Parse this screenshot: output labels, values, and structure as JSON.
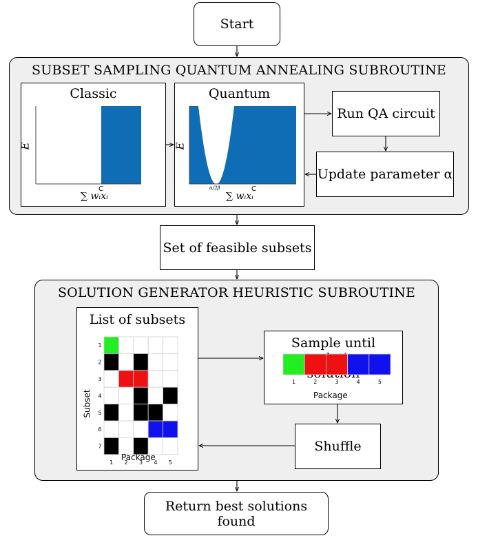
{
  "start": "Start",
  "top_section": {
    "title": "SUBSET SAMPLING QUANTUM ANNEALING SUBROUTINE",
    "classic": {
      "title": "Classic",
      "ylabel": "E",
      "xlabel": "∑ wᵢxᵢ",
      "xmark": "C"
    },
    "quantum": {
      "title": "Quantum",
      "ylabel": "E",
      "xlabel": "∑ wᵢxᵢ",
      "xmark": "C",
      "min_label": "α/2β"
    },
    "run_qa": "Run QA circuit",
    "update_param": "Update parameter α"
  },
  "feasible": "Set of feasible subsets",
  "bottom_section": {
    "title": "SOLUTION GENERATOR HEURISTIC SUBROUTINE",
    "list_title": "List of subsets",
    "sample_title_line1": "Sample until",
    "sample_title_line2": "completing a solution",
    "shuffle": "Shuffle",
    "package_label": "Package",
    "subset_label": "Subset"
  },
  "return_best": "Return best solutions found",
  "colors": {
    "green": "#22ee22",
    "red": "#ee1111",
    "blue": "#1111ee",
    "plot_blue": "#0f6db5",
    "black": "#000000",
    "panel": "#efefef"
  },
  "chart_data": [
    {
      "type": "heatmap",
      "title": "List of subsets",
      "xlabel": "Package",
      "ylabel": "Subset",
      "x_ticks": [
        "1",
        "2",
        "3",
        "4",
        "5"
      ],
      "y_ticks": [
        "1",
        "2",
        "3",
        "4",
        "5",
        "6",
        "7"
      ],
      "grid": [
        [
          "green",
          "white",
          "white",
          "white",
          "white"
        ],
        [
          "black",
          "white",
          "black",
          "white",
          "white"
        ],
        [
          "white",
          "red",
          "red",
          "white",
          "white"
        ],
        [
          "white",
          "white",
          "black",
          "white",
          "black"
        ],
        [
          "black",
          "white",
          "black",
          "black",
          "white"
        ],
        [
          "white",
          "white",
          "white",
          "blue",
          "blue"
        ],
        [
          "black",
          "white",
          "black",
          "white",
          "white"
        ]
      ]
    },
    {
      "type": "heatmap",
      "title": "Sample until completing a solution",
      "xlabel": "Package",
      "x_ticks": [
        "1",
        "2",
        "3",
        "4",
        "5"
      ],
      "row": [
        "green",
        "red",
        "red",
        "blue",
        "blue"
      ]
    }
  ]
}
